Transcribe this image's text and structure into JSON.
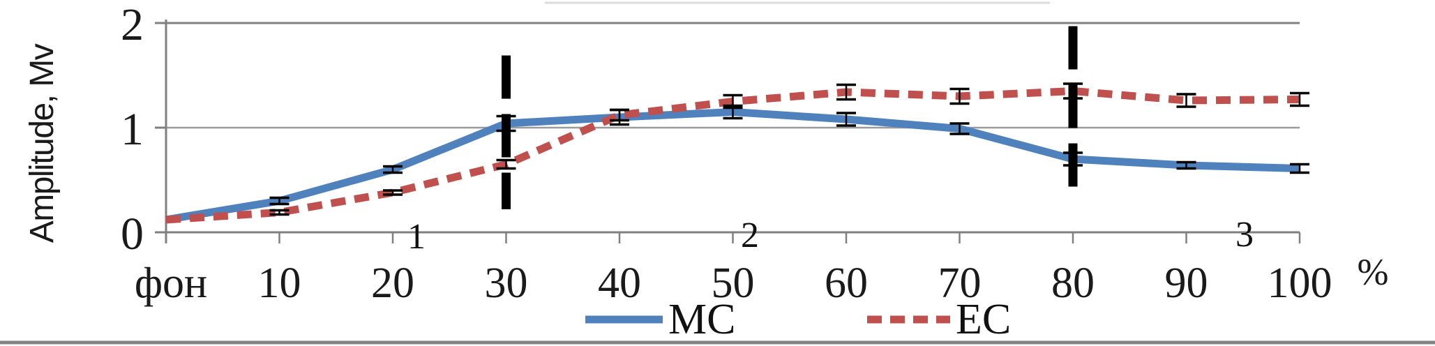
{
  "chart_data": {
    "type": "line",
    "title": "",
    "ylabel": "Amplitude, Mv",
    "xlabel": "",
    "x_axis_unit": "%",
    "categories": [
      "фон",
      "10",
      "20",
      "30",
      "40",
      "50",
      "60",
      "70",
      "80",
      "90",
      "100"
    ],
    "y_ticks": [
      0,
      1,
      2
    ],
    "ylim": [
      0,
      2
    ],
    "grid": "horizontal",
    "legend_position": "bottom-center",
    "series": [
      {
        "name": "MC",
        "style": "solid",
        "color": "#4f81bd",
        "values": [
          0.12,
          0.3,
          0.6,
          1.04,
          1.1,
          1.15,
          1.08,
          0.99,
          0.7,
          0.64,
          0.61
        ],
        "error_bars": [
          0,
          0.03,
          0.03,
          0.07,
          0.07,
          0.06,
          0.06,
          0.05,
          0.06,
          0.03,
          0.04
        ]
      },
      {
        "name": "EC",
        "style": "dashed",
        "color": "#c0504d",
        "values": [
          0.12,
          0.19,
          0.38,
          0.65,
          1.12,
          1.25,
          1.34,
          1.3,
          1.35,
          1.26,
          1.27
        ],
        "error_bars": [
          0,
          0.02,
          0.02,
          0.04,
          0.05,
          0.06,
          0.07,
          0.07,
          0.07,
          0.06,
          0.06
        ]
      }
    ],
    "phase_markers": [
      {
        "at_category": "30",
        "from": 0.22,
        "to": 1.69,
        "color": "#000000",
        "style": "thick-dashed-vertical"
      },
      {
        "at_category": "80",
        "from": 0.37,
        "to": 1.97,
        "color": "#000000",
        "style": "thick-dashed-vertical"
      }
    ],
    "region_labels": [
      {
        "text": "1",
        "x_index": 2.2
      },
      {
        "text": "2",
        "x_index": 5.15
      },
      {
        "text": "3",
        "x_index": 9.5
      }
    ],
    "axis_color": "#808080",
    "gridline_color": "#999999",
    "error_bar_color": "#000000"
  },
  "artifacts": {
    "top_partial_line_color": "#dcdcdc",
    "bottom_rule_color": "#848484"
  }
}
